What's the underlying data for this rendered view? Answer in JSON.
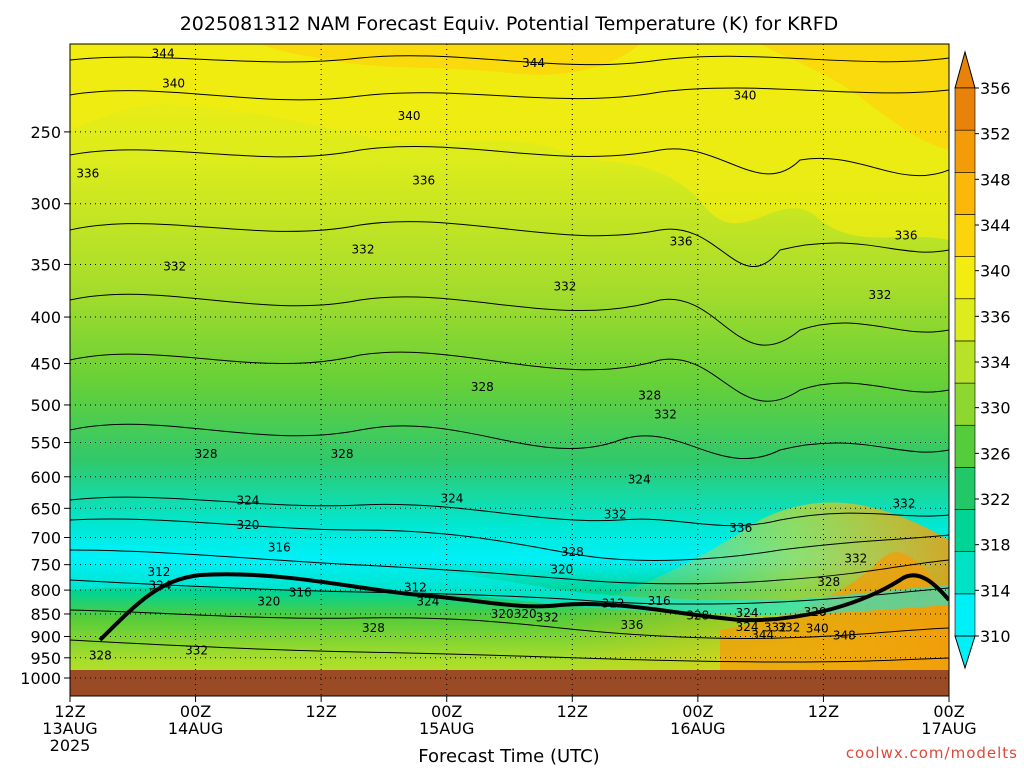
{
  "chart_data": {
    "type": "heatmap",
    "title": "2025081312 NAM Forecast Equiv. Potential Temperature (K) for KRFD",
    "xlabel": "Forecast Time (UTC)",
    "ylabel": "",
    "credit": "coolwx.com/modelts",
    "x_ticks": [
      {
        "hours": 0,
        "line1": "12Z",
        "line2": "13AUG",
        "line3": "2025"
      },
      {
        "hours": 12,
        "line1": "00Z",
        "line2": "14AUG",
        "line3": ""
      },
      {
        "hours": 24,
        "line1": "12Z",
        "line2": "",
        "line3": ""
      },
      {
        "hours": 36,
        "line1": "00Z",
        "line2": "15AUG",
        "line3": ""
      },
      {
        "hours": 48,
        "line1": "12Z",
        "line2": "",
        "line3": ""
      },
      {
        "hours": 60,
        "line1": "00Z",
        "line2": "16AUG",
        "line3": ""
      },
      {
        "hours": 72,
        "line1": "12Z",
        "line2": "",
        "line3": ""
      },
      {
        "hours": 84,
        "line1": "00Z",
        "line2": "17AUG",
        "line3": ""
      }
    ],
    "xlim": [
      0,
      84
    ],
    "y_ticks": [
      "250",
      "300",
      "350",
      "400",
      "450",
      "500",
      "550",
      "600",
      "650",
      "700",
      "750",
      "800",
      "850",
      "900",
      "950",
      "1000"
    ],
    "y_tick_values": [
      250,
      300,
      350,
      400,
      450,
      500,
      550,
      600,
      650,
      700,
      750,
      800,
      850,
      900,
      950,
      1000
    ],
    "ylim": [
      1000,
      200
    ],
    "y_scale": "log",
    "grid": true,
    "ground_color": "#9a4a24",
    "colorbar": {
      "labels": [
        "310",
        "314",
        "318",
        "322",
        "326",
        "330",
        "334",
        "336",
        "340",
        "344",
        "348",
        "352",
        "356"
      ],
      "values": [
        310,
        314,
        318,
        322,
        326,
        330,
        334,
        336,
        340,
        344,
        348,
        352,
        356
      ],
      "colors": [
        "#00f0f8",
        "#00e2c4",
        "#00d494",
        "#22c868",
        "#55cc3a",
        "#8ed630",
        "#b8e228",
        "#dcec1c",
        "#f2ec10",
        "#fcd40c",
        "#fcb808",
        "#f49c08",
        "#e8820a"
      ]
    },
    "contour_labels": [
      {
        "text": "344",
        "h": 8.9,
        "p": 205
      },
      {
        "text": "344",
        "h": 44.3,
        "p": 210
      },
      {
        "text": "340",
        "h": 9.9,
        "p": 221
      },
      {
        "text": "340",
        "h": 32.4,
        "p": 240
      },
      {
        "text": "340",
        "h": 64.5,
        "p": 228
      },
      {
        "text": "336",
        "h": 1.7,
        "p": 278
      },
      {
        "text": "336",
        "h": 33.8,
        "p": 283
      },
      {
        "text": "336",
        "h": 58.4,
        "p": 330
      },
      {
        "text": "336",
        "h": 79.9,
        "p": 325
      },
      {
        "text": "332",
        "h": 10.0,
        "p": 352
      },
      {
        "text": "332",
        "h": 28.0,
        "p": 337
      },
      {
        "text": "332",
        "h": 47.3,
        "p": 370
      },
      {
        "text": "332",
        "h": 77.4,
        "p": 378
      },
      {
        "text": "332",
        "h": 56.9,
        "p": 512
      },
      {
        "text": "332",
        "h": 52.1,
        "p": 660
      },
      {
        "text": "332",
        "h": 79.7,
        "p": 642
      },
      {
        "text": "332",
        "h": 75.1,
        "p": 738
      },
      {
        "text": "332",
        "h": 12.1,
        "p": 933
      },
      {
        "text": "332",
        "h": 45.6,
        "p": 858
      },
      {
        "text": "332",
        "h": 68.7,
        "p": 880
      },
      {
        "text": "328",
        "h": 39.4,
        "p": 478
      },
      {
        "text": "328",
        "h": 55.4,
        "p": 488
      },
      {
        "text": "328",
        "h": 13.0,
        "p": 566
      },
      {
        "text": "328",
        "h": 26.0,
        "p": 566
      },
      {
        "text": "328",
        "h": 48.0,
        "p": 726
      },
      {
        "text": "328",
        "h": 72.5,
        "p": 784
      },
      {
        "text": "328",
        "h": 29.0,
        "p": 881
      },
      {
        "text": "328",
        "h": 60.0,
        "p": 853
      },
      {
        "text": "328",
        "h": 2.9,
        "p": 945
      },
      {
        "text": "324",
        "h": 17.0,
        "p": 637
      },
      {
        "text": "324",
        "h": 36.5,
        "p": 634
      },
      {
        "text": "324",
        "h": 54.4,
        "p": 604
      },
      {
        "text": "324",
        "h": 8.6,
        "p": 791
      },
      {
        "text": "324",
        "h": 34.2,
        "p": 823
      },
      {
        "text": "324",
        "h": 64.7,
        "p": 848
      },
      {
        "text": "324",
        "h": 64.7,
        "p": 879
      },
      {
        "text": "320",
        "h": 17.0,
        "p": 678
      },
      {
        "text": "320",
        "h": 19.0,
        "p": 824
      },
      {
        "text": "320",
        "h": 47.0,
        "p": 759
      },
      {
        "text": "320",
        "h": 41.3,
        "p": 850
      },
      {
        "text": "320",
        "h": 71.2,
        "p": 846
      },
      {
        "text": "316",
        "h": 20.0,
        "p": 718
      },
      {
        "text": "316",
        "h": 22.0,
        "p": 805
      },
      {
        "text": "316",
        "h": 56.3,
        "p": 822
      },
      {
        "text": "312",
        "h": 8.5,
        "p": 764
      },
      {
        "text": "312",
        "h": 33.0,
        "p": 795
      },
      {
        "text": "312",
        "h": 51.9,
        "p": 828
      },
      {
        "text": "344",
        "h": 66.2,
        "p": 897
      },
      {
        "text": "340",
        "h": 71.4,
        "p": 882
      },
      {
        "text": "348",
        "h": 74.0,
        "p": 898
      },
      {
        "text": "336",
        "h": 53.7,
        "p": 874
      },
      {
        "text": "336",
        "h": 64.1,
        "p": 683
      },
      {
        "text": "332",
        "h": 67.4,
        "p": 880
      },
      {
        "text": "320",
        "h": 43.5,
        "p": 850
      }
    ]
  }
}
